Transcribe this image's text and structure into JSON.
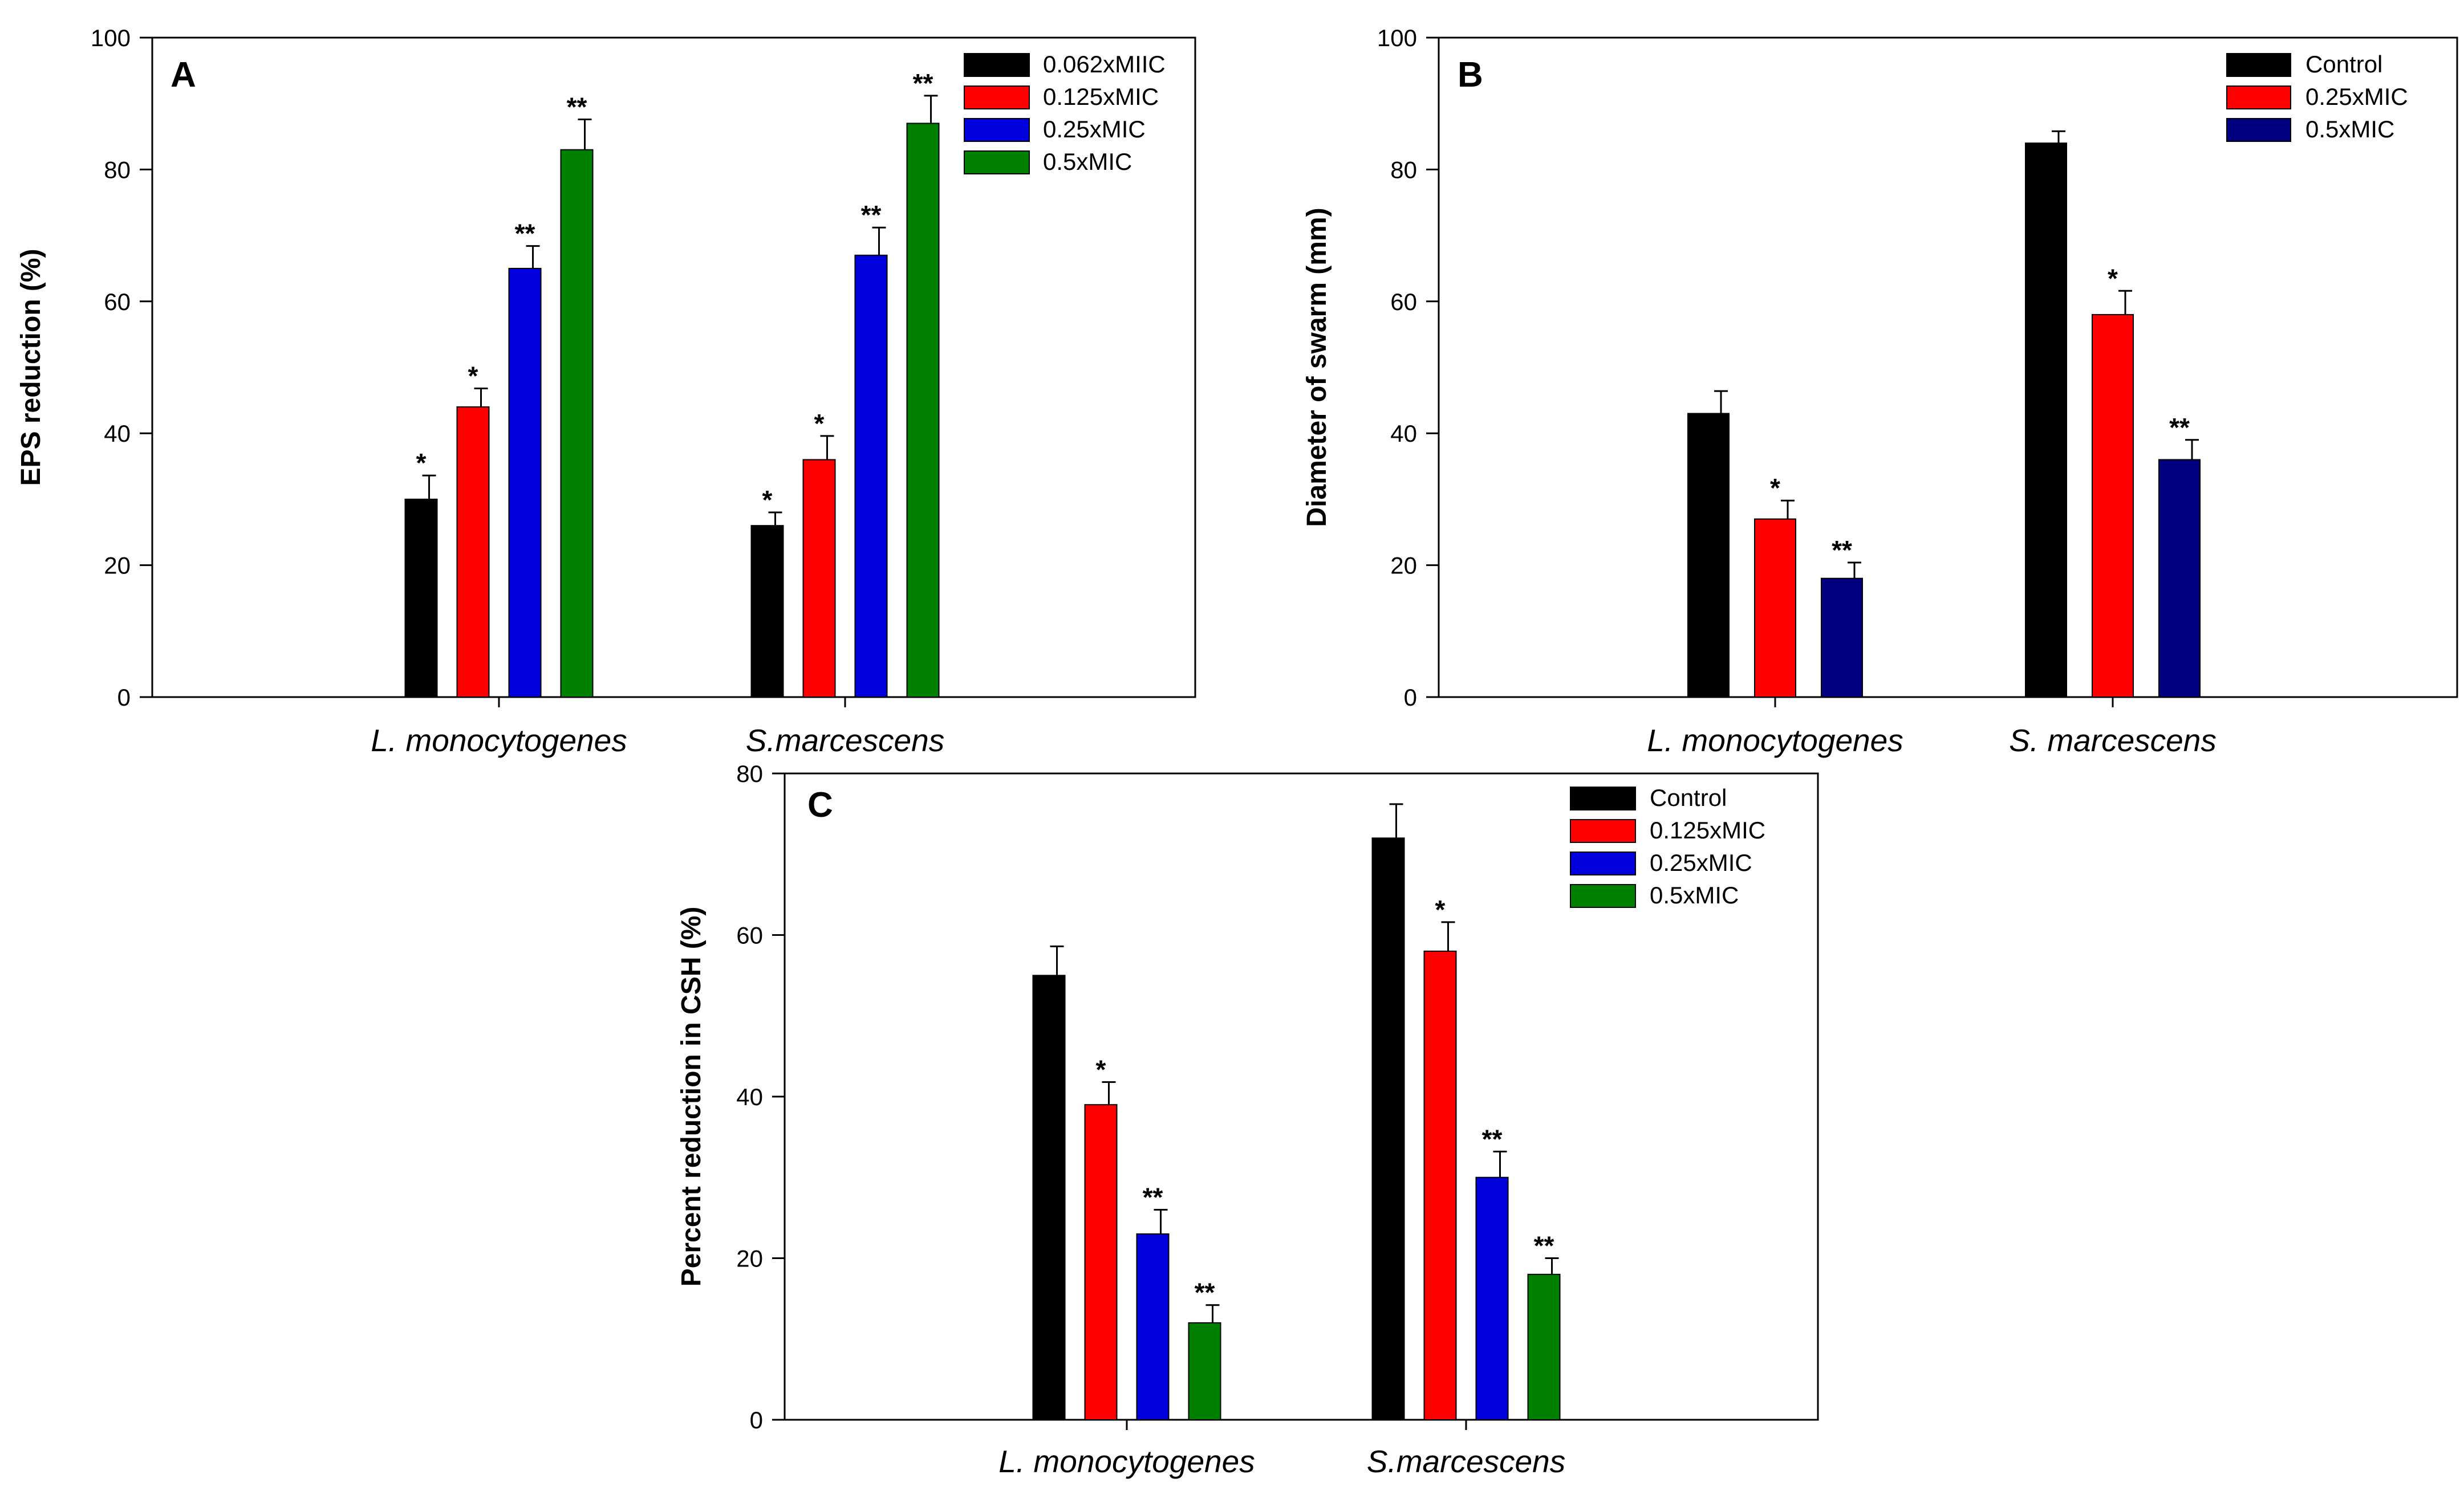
{
  "chart_data": [
    {
      "panel": "A",
      "type": "bar",
      "ylabel": "EPS reduction (%)",
      "xlabel": "",
      "ylim": [
        0,
        100
      ],
      "yticks": [
        0,
        20,
        40,
        60,
        80,
        100
      ],
      "categories": [
        "L. monocytogenes",
        "S.marcescens"
      ],
      "legend_position": "top-right",
      "series": [
        {
          "name": "0.062xMIIC",
          "color": "#000000",
          "values": [
            30,
            26
          ],
          "errors": [
            3.6,
            2.0
          ],
          "significance": [
            "*",
            "*"
          ]
        },
        {
          "name": "0.125xMIC",
          "color": "#ff0000",
          "values": [
            44,
            36
          ],
          "errors": [
            2.8,
            3.6
          ],
          "significance": [
            "*",
            "*"
          ]
        },
        {
          "name": "0.25xMIC",
          "color": "#0000dd",
          "values": [
            65,
            67
          ],
          "errors": [
            3.4,
            4.2
          ],
          "significance": [
            "**",
            "**"
          ]
        },
        {
          "name": "0.5xMIC",
          "color": "#008000",
          "values": [
            83,
            87
          ],
          "errors": [
            4.6,
            4.2
          ],
          "significance": [
            "**",
            "**"
          ]
        }
      ]
    },
    {
      "panel": "B",
      "type": "bar",
      "ylabel": "Diameter of swarm (mm)",
      "xlabel": "",
      "ylim": [
        0,
        100
      ],
      "yticks": [
        0,
        20,
        40,
        60,
        80,
        100
      ],
      "categories": [
        "L. monocytogenes",
        "S. marcescens"
      ],
      "legend_position": "top-right",
      "series": [
        {
          "name": "Control",
          "color": "#000000",
          "values": [
            43,
            84
          ],
          "errors": [
            3.4,
            1.8
          ],
          "significance": [
            "",
            ""
          ]
        },
        {
          "name": "0.25xMIC",
          "color": "#ff0000",
          "values": [
            27,
            58
          ],
          "errors": [
            2.8,
            3.6
          ],
          "significance": [
            "*",
            "*"
          ]
        },
        {
          "name": "0.5xMIC",
          "color": "#000080",
          "values": [
            18,
            36
          ],
          "errors": [
            2.4,
            3.0
          ],
          "significance": [
            "**",
            "**"
          ]
        }
      ]
    },
    {
      "panel": "C",
      "type": "bar",
      "ylabel": "Percent reduction in CSH (%)",
      "xlabel": "",
      "ylim": [
        0,
        80
      ],
      "yticks": [
        0,
        20,
        40,
        60,
        80
      ],
      "categories": [
        "L. monocytogenes",
        "S.marcescens"
      ],
      "legend_position": "top-right",
      "series": [
        {
          "name": "Control",
          "color": "#000000",
          "values": [
            55,
            72
          ],
          "errors": [
            3.6,
            4.2
          ],
          "significance": [
            "",
            ""
          ]
        },
        {
          "name": "0.125xMIC",
          "color": "#ff0000",
          "values": [
            39,
            58
          ],
          "errors": [
            2.8,
            3.6
          ],
          "significance": [
            "*",
            "*"
          ]
        },
        {
          "name": "0.25xMIC",
          "color": "#0000dd",
          "values": [
            23,
            30
          ],
          "errors": [
            3.0,
            3.2
          ],
          "significance": [
            "**",
            "**"
          ]
        },
        {
          "name": "0.5xMIC",
          "color": "#008000",
          "values": [
            12,
            18
          ],
          "errors": [
            2.2,
            2.0
          ],
          "significance": [
            "**",
            "**"
          ]
        }
      ]
    }
  ]
}
